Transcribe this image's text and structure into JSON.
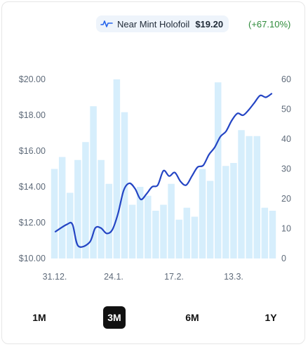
{
  "legend": {
    "name": "Near Mint Holofoil",
    "price": "$19.20",
    "change": "(+67.10%)",
    "icon": "line-chart-icon",
    "color": "#2563eb"
  },
  "range_buttons": [
    {
      "label": "1M",
      "active": false
    },
    {
      "label": "3M",
      "active": true
    },
    {
      "label": "6M",
      "active": false
    },
    {
      "label": "1Y",
      "active": false
    }
  ],
  "colors": {
    "line": "#2445c4",
    "bars": "#d6eefc",
    "positive": "#2e8b3a"
  },
  "chart_data": {
    "type": "bar+line",
    "x_tick_labels": [
      "31.12.",
      "24.1.",
      "17.2.",
      "13.3."
    ],
    "y_left": {
      "ticks": [
        "$20.00",
        "$18.00",
        "$16.00",
        "$14.00",
        "$12.00",
        "$10.00"
      ],
      "range": [
        10,
        20
      ]
    },
    "y_right": {
      "ticks": [
        "60",
        "50",
        "40",
        "30",
        "20",
        "10",
        "0"
      ],
      "range": [
        0,
        60
      ]
    },
    "bar_series": {
      "axis": "right",
      "values": [
        30,
        34,
        22,
        33,
        39,
        51,
        33,
        25,
        60,
        49,
        18,
        24,
        21,
        16,
        18,
        25,
        13,
        17,
        14,
        30,
        26,
        59,
        31,
        32,
        43,
        41,
        41,
        17,
        16
      ]
    },
    "line_series": {
      "axis": "left",
      "x": [
        0,
        0.5,
        1,
        1.5,
        2,
        2.5,
        3,
        3.5,
        4,
        4.5,
        5,
        5.5,
        6,
        6.5,
        7,
        7.5,
        8,
        8.5,
        9,
        9.5,
        10,
        10.5,
        11,
        11.5,
        12,
        12.5,
        13,
        13.5,
        14,
        14.5,
        15,
        15.5,
        16,
        16.5,
        17,
        17.5,
        18,
        18.5,
        19,
        19.5,
        20,
        20.5,
        21,
        21.5,
        22,
        22.5,
        23,
        23.5,
        24,
        24.5,
        25,
        25.5,
        26,
        26.5,
        27,
        27.5,
        28
      ],
      "values": [
        11.5,
        11.8,
        11.9,
        11.9,
        10.8,
        10.6,
        10.9,
        11.6,
        11.7,
        11.4,
        11.6,
        12.5,
        13.7,
        14.2,
        14.0,
        13.6,
        13.4,
        13.9,
        14.1,
        14.6,
        14.9,
        14.6,
        14.7,
        14.4,
        14.2,
        14.1,
        14.6,
        15.1,
        15.2,
        15.9,
        16.2,
        16.7,
        17.0,
        17.6,
        18.1,
        18.0,
        18.2,
        18.6,
        19.0,
        19.2,
        19.1,
        19.3,
        19.2,
        19.2,
        19.1,
        19.2,
        19.2,
        19.2,
        19.3,
        19.2,
        19.2,
        19.2,
        19.2,
        19.2,
        19.2,
        19.2,
        19.2
      ],
      "points": [
        [
          0,
          11.5
        ],
        [
          1,
          11.9
        ],
        [
          1.5,
          11.9
        ],
        [
          2,
          10.7
        ],
        [
          3,
          10.9
        ],
        [
          3.5,
          11.7
        ],
        [
          4,
          11.7
        ],
        [
          4.5,
          11.4
        ],
        [
          5,
          11.6
        ],
        [
          5.5,
          12.5
        ],
        [
          6,
          13.8
        ],
        [
          6.5,
          14.2
        ],
        [
          7,
          13.9
        ],
        [
          7.5,
          13.3
        ],
        [
          8,
          13.6
        ],
        [
          8.5,
          14.0
        ],
        [
          9,
          14.1
        ],
        [
          9.5,
          14.9
        ],
        [
          10,
          14.6
        ],
        [
          10.5,
          14.8
        ],
        [
          11,
          14.3
        ],
        [
          11.5,
          14.1
        ],
        [
          12,
          14.6
        ],
        [
          12.5,
          15.1
        ],
        [
          13,
          15.2
        ],
        [
          13.5,
          15.8
        ],
        [
          14,
          16.2
        ],
        [
          14.5,
          16.8
        ],
        [
          15,
          17.1
        ],
        [
          15.5,
          17.7
        ],
        [
          16,
          18.1
        ],
        [
          16.5,
          18.0
        ],
        [
          17,
          18.3
        ],
        [
          17.5,
          18.7
        ],
        [
          18,
          19.1
        ],
        [
          18.5,
          19.0
        ],
        [
          19,
          19.2
        ]
      ]
    },
    "grid": false
  }
}
